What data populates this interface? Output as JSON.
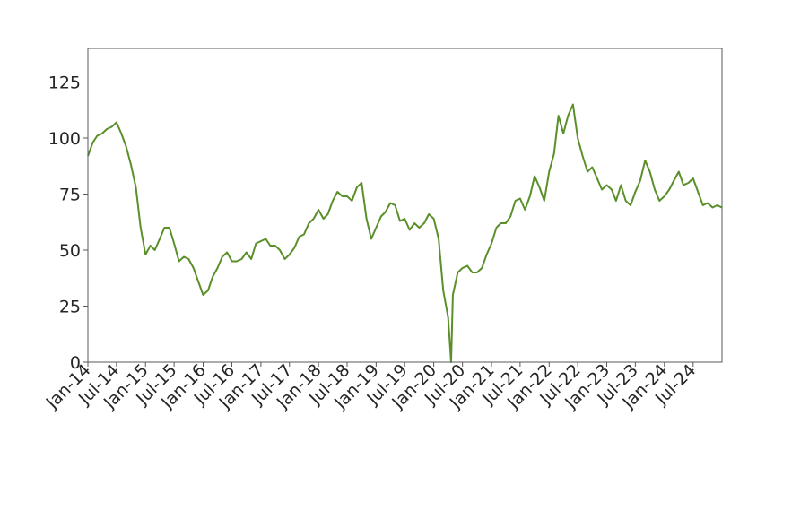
{
  "chart_data": {
    "type": "line",
    "title": "",
    "xlabel": "",
    "ylabel": "",
    "ylim": [
      0,
      140
    ],
    "y_ticks": [
      0,
      25,
      50,
      75,
      100,
      125
    ],
    "x_ticks": [
      "Jan-14",
      "Jul-14",
      "Jan-15",
      "Jul-15",
      "Jan-16",
      "Jul-16",
      "Jan-17",
      "Jul-17",
      "Jan-18",
      "Jul-18",
      "Jan-19",
      "Jul-19",
      "Jan-20",
      "Jul-20",
      "Jan-21",
      "Jul-21",
      "Jan-22",
      "Jul-22",
      "Jan-23",
      "Jul-23",
      "Jan-24",
      "Jul-24"
    ],
    "xlim": [
      "2014-01-01",
      "2024-12-31"
    ],
    "grid": false,
    "legend": "none",
    "line_color": "#5a8f29",
    "series": [
      {
        "points": [
          [
            "2014-01-01",
            92
          ],
          [
            "2014-02-01",
            98
          ],
          [
            "2014-03-01",
            101
          ],
          [
            "2014-04-01",
            102
          ],
          [
            "2014-05-01",
            104
          ],
          [
            "2014-06-01",
            105
          ],
          [
            "2014-07-01",
            107
          ],
          [
            "2014-08-01",
            102
          ],
          [
            "2014-09-01",
            96
          ],
          [
            "2014-10-01",
            88
          ],
          [
            "2014-11-01",
            78
          ],
          [
            "2014-12-01",
            60
          ],
          [
            "2015-01-01",
            48
          ],
          [
            "2015-02-01",
            52
          ],
          [
            "2015-03-01",
            50
          ],
          [
            "2015-04-01",
            55
          ],
          [
            "2015-05-01",
            60
          ],
          [
            "2015-06-01",
            60
          ],
          [
            "2015-07-01",
            53
          ],
          [
            "2015-08-01",
            45
          ],
          [
            "2015-09-01",
            47
          ],
          [
            "2015-10-01",
            46
          ],
          [
            "2015-11-01",
            42
          ],
          [
            "2015-12-01",
            36
          ],
          [
            "2016-01-01",
            30
          ],
          [
            "2016-02-01",
            32
          ],
          [
            "2016-03-01",
            38
          ],
          [
            "2016-04-01",
            42
          ],
          [
            "2016-05-01",
            47
          ],
          [
            "2016-06-01",
            49
          ],
          [
            "2016-07-01",
            45
          ],
          [
            "2016-08-01",
            45
          ],
          [
            "2016-09-01",
            46
          ],
          [
            "2016-10-01",
            49
          ],
          [
            "2016-11-01",
            46
          ],
          [
            "2016-12-01",
            53
          ],
          [
            "2017-01-01",
            54
          ],
          [
            "2017-02-01",
            55
          ],
          [
            "2017-03-01",
            52
          ],
          [
            "2017-04-01",
            52
          ],
          [
            "2017-05-01",
            50
          ],
          [
            "2017-06-01",
            46
          ],
          [
            "2017-07-01",
            48
          ],
          [
            "2017-08-01",
            51
          ],
          [
            "2017-09-01",
            56
          ],
          [
            "2017-10-01",
            57
          ],
          [
            "2017-11-01",
            62
          ],
          [
            "2017-12-01",
            64
          ],
          [
            "2018-01-01",
            68
          ],
          [
            "2018-02-01",
            64
          ],
          [
            "2018-03-01",
            66
          ],
          [
            "2018-04-01",
            72
          ],
          [
            "2018-05-01",
            76
          ],
          [
            "2018-06-01",
            74
          ],
          [
            "2018-07-01",
            74
          ],
          [
            "2018-08-01",
            72
          ],
          [
            "2018-09-01",
            78
          ],
          [
            "2018-10-01",
            80
          ],
          [
            "2018-11-01",
            64
          ],
          [
            "2018-12-01",
            55
          ],
          [
            "2019-01-01",
            60
          ],
          [
            "2019-02-01",
            65
          ],
          [
            "2019-03-01",
            67
          ],
          [
            "2019-04-01",
            71
          ],
          [
            "2019-05-01",
            70
          ],
          [
            "2019-06-01",
            63
          ],
          [
            "2019-07-01",
            64
          ],
          [
            "2019-08-01",
            59
          ],
          [
            "2019-09-01",
            62
          ],
          [
            "2019-10-01",
            60
          ],
          [
            "2019-11-01",
            62
          ],
          [
            "2019-12-01",
            66
          ],
          [
            "2020-01-01",
            64
          ],
          [
            "2020-02-01",
            55
          ],
          [
            "2020-03-01",
            32
          ],
          [
            "2020-04-01",
            20
          ],
          [
            "2020-04-20",
            0
          ],
          [
            "2020-05-01",
            30
          ],
          [
            "2020-06-01",
            40
          ],
          [
            "2020-07-01",
            42
          ],
          [
            "2020-08-01",
            43
          ],
          [
            "2020-09-01",
            40
          ],
          [
            "2020-10-01",
            40
          ],
          [
            "2020-11-01",
            42
          ],
          [
            "2020-12-01",
            48
          ],
          [
            "2021-01-01",
            53
          ],
          [
            "2021-02-01",
            60
          ],
          [
            "2021-03-01",
            62
          ],
          [
            "2021-04-01",
            62
          ],
          [
            "2021-05-01",
            65
          ],
          [
            "2021-06-01",
            72
          ],
          [
            "2021-07-01",
            73
          ],
          [
            "2021-08-01",
            68
          ],
          [
            "2021-09-01",
            74
          ],
          [
            "2021-10-01",
            83
          ],
          [
            "2021-11-01",
            78
          ],
          [
            "2021-12-01",
            72
          ],
          [
            "2022-01-01",
            85
          ],
          [
            "2022-02-01",
            93
          ],
          [
            "2022-03-01",
            110
          ],
          [
            "2022-04-01",
            102
          ],
          [
            "2022-05-01",
            110
          ],
          [
            "2022-06-01",
            115
          ],
          [
            "2022-07-01",
            100
          ],
          [
            "2022-08-01",
            92
          ],
          [
            "2022-09-01",
            85
          ],
          [
            "2022-10-01",
            87
          ],
          [
            "2022-11-01",
            82
          ],
          [
            "2022-12-01",
            77
          ],
          [
            "2023-01-01",
            79
          ],
          [
            "2023-02-01",
            77
          ],
          [
            "2023-03-01",
            72
          ],
          [
            "2023-04-01",
            79
          ],
          [
            "2023-05-01",
            72
          ],
          [
            "2023-06-01",
            70
          ],
          [
            "2023-07-01",
            76
          ],
          [
            "2023-08-01",
            81
          ],
          [
            "2023-09-01",
            90
          ],
          [
            "2023-10-01",
            85
          ],
          [
            "2023-11-01",
            77
          ],
          [
            "2023-12-01",
            72
          ],
          [
            "2024-01-01",
            74
          ],
          [
            "2024-02-01",
            77
          ],
          [
            "2024-03-01",
            81
          ],
          [
            "2024-04-01",
            85
          ],
          [
            "2024-05-01",
            79
          ],
          [
            "2024-06-01",
            80
          ],
          [
            "2024-07-01",
            82
          ],
          [
            "2024-08-01",
            76
          ],
          [
            "2024-09-01",
            70
          ],
          [
            "2024-10-01",
            71
          ],
          [
            "2024-11-01",
            69
          ],
          [
            "2024-12-01",
            70
          ],
          [
            "2024-12-31",
            69
          ]
        ]
      }
    ]
  }
}
